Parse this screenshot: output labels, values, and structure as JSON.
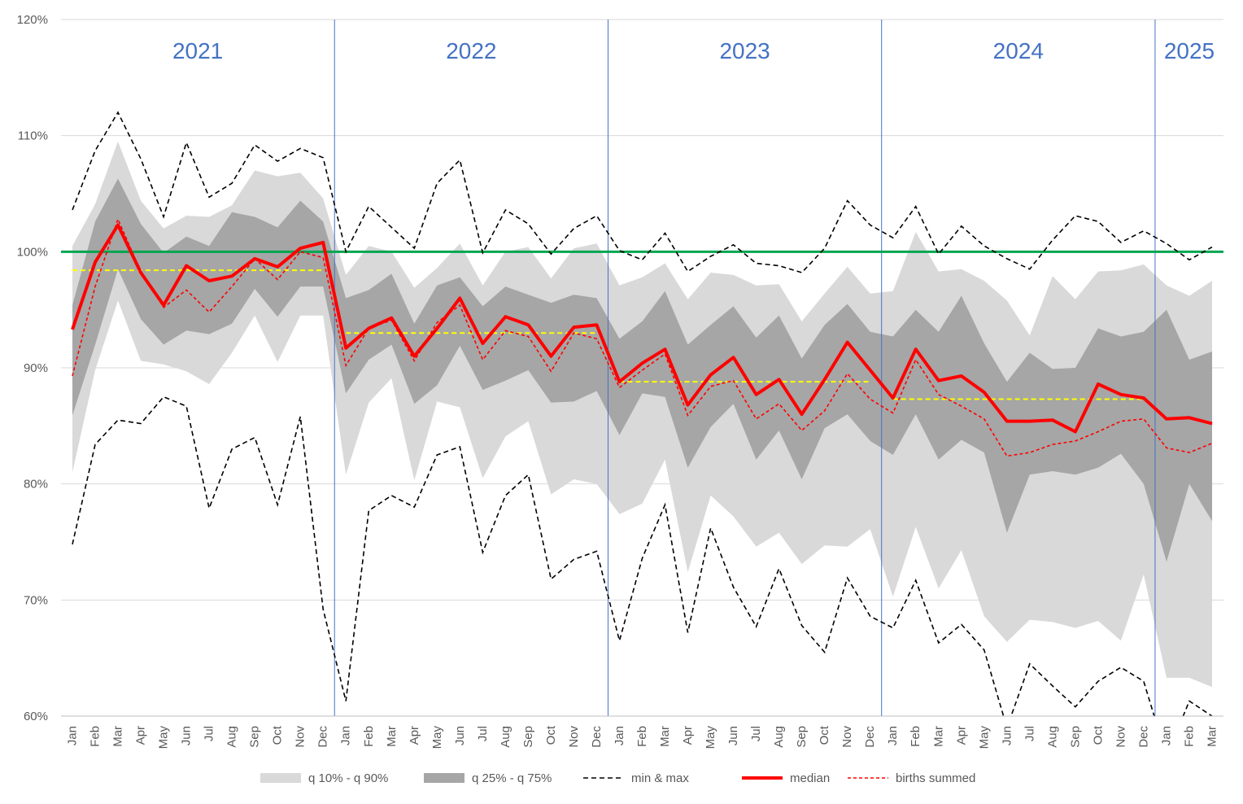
{
  "chart_data": {
    "type": "area",
    "title": "",
    "xlabel": "",
    "ylabel": "",
    "ylim": [
      60,
      120
    ],
    "yticks": [
      "60%",
      "70%",
      "80%",
      "90%",
      "100%",
      "110%",
      "120%"
    ],
    "ytick_values": [
      60,
      70,
      80,
      90,
      100,
      110,
      120
    ],
    "grid": "horizontal",
    "legend_position": "bottom",
    "years": [
      {
        "label": "2021",
        "start": 0,
        "end": 12
      },
      {
        "label": "2022",
        "start": 12,
        "end": 24
      },
      {
        "label": "2023",
        "start": 24,
        "end": 36
      },
      {
        "label": "2024",
        "start": 36,
        "end": 48
      },
      {
        "label": "2025",
        "start": 48,
        "end": 51
      }
    ],
    "categories": [
      "Jan",
      "Feb",
      "Mar",
      "Apr",
      "May",
      "Jun",
      "Jul",
      "Aug",
      "Sep",
      "Oct",
      "Nov",
      "Dec",
      "Jan",
      "Feb",
      "Mar",
      "Apr",
      "May",
      "Jun",
      "Jul",
      "Aug",
      "Sep",
      "Oct",
      "Nov",
      "Dec",
      "Jan",
      "Feb",
      "Mar",
      "Apr",
      "May",
      "Jun",
      "Jul",
      "Aug",
      "Sep",
      "Oct",
      "Nov",
      "Dec",
      "Jan",
      "Feb",
      "Mar",
      "Apr",
      "May",
      "Jun",
      "Jul",
      "Aug",
      "Sep",
      "Oct",
      "Nov",
      "Dec",
      "Jan",
      "Feb",
      "Mar"
    ],
    "series": [
      {
        "name": "q 10% - q 90%",
        "kind": "band",
        "color": "#d9d9d9",
        "lower": [
          81.0,
          89.8,
          95.8,
          90.6,
          90.3,
          89.7,
          88.6,
          91.3,
          94.5,
          90.5,
          94.5,
          94.5,
          80.8,
          87.0,
          89.1,
          80.3,
          87.1,
          86.6,
          80.5,
          84.1,
          85.4,
          79.1,
          80.4,
          80.0,
          77.4,
          78.3,
          82.1,
          72.4,
          79.0,
          77.2,
          74.6,
          75.8,
          73.1,
          74.7,
          74.6,
          76.1,
          70.3,
          76.3,
          71.0,
          74.3,
          68.6,
          66.4,
          68.3,
          68.1,
          67.6,
          68.2,
          66.5,
          72.2,
          63.3,
          63.3,
          62.5
        ],
        "upper": [
          100.5,
          104.1,
          109.5,
          104.4,
          102.0,
          103.1,
          103.0,
          104.0,
          107.0,
          106.5,
          106.8,
          104.6,
          98.0,
          100.5,
          100.0,
          96.9,
          98.6,
          100.7,
          97.1,
          100.0,
          100.4,
          97.7,
          100.3,
          100.7,
          97.1,
          97.8,
          99.0,
          95.9,
          98.2,
          98.0,
          97.1,
          97.2,
          94.0,
          96.4,
          98.7,
          96.4,
          96.6,
          101.7,
          98.3,
          98.5,
          97.5,
          95.8,
          92.8,
          97.9,
          95.9,
          98.3,
          98.4,
          98.9,
          97.1,
          96.2,
          97.5
        ]
      },
      {
        "name": "q 25% - q 75%",
        "kind": "band",
        "color": "#a6a6a6",
        "lower": [
          85.9,
          92.0,
          98.5,
          94.2,
          92.0,
          93.2,
          92.9,
          93.8,
          96.8,
          94.4,
          97.0,
          97.0,
          87.8,
          90.7,
          92.0,
          86.9,
          88.5,
          91.9,
          88.1,
          88.9,
          89.8,
          87.0,
          87.1,
          88.0,
          84.2,
          87.8,
          87.5,
          81.4,
          84.9,
          86.9,
          82.1,
          84.6,
          80.4,
          84.8,
          86.0,
          83.7,
          82.5,
          86.0,
          82.1,
          83.8,
          82.7,
          75.8,
          80.8,
          81.1,
          80.8,
          81.4,
          82.6,
          80.0,
          73.3,
          80.0,
          76.8
        ],
        "upper": [
          95.4,
          102.6,
          106.3,
          102.4,
          99.9,
          101.3,
          100.5,
          103.4,
          103.0,
          102.1,
          104.4,
          102.6,
          96.0,
          96.7,
          98.1,
          93.8,
          97.1,
          97.8,
          95.3,
          97.0,
          96.3,
          95.6,
          96.3,
          96.0,
          92.5,
          94.0,
          96.6,
          92.0,
          93.7,
          95.3,
          92.6,
          94.5,
          90.8,
          93.7,
          95.5,
          93.1,
          92.7,
          95.0,
          93.1,
          96.2,
          92.1,
          88.8,
          91.3,
          89.9,
          90.0,
          93.4,
          92.7,
          93.1,
          95.0,
          90.7,
          91.4
        ]
      },
      {
        "name": "min & max",
        "kind": "minmax",
        "color": "#000000",
        "min": [
          74.8,
          83.4,
          85.5,
          85.2,
          87.5,
          86.7,
          77.9,
          83.0,
          84.0,
          78.2,
          85.8,
          69.2,
          61.3,
          77.7,
          79.0,
          78.0,
          82.5,
          83.2,
          74.1,
          79.0,
          80.8,
          71.8,
          73.5,
          74.2,
          66.5,
          73.6,
          78.2,
          67.2,
          76.2,
          71.1,
          67.7,
          72.7,
          67.8,
          65.5,
          71.9,
          68.6,
          67.6,
          71.7,
          66.3,
          67.9,
          65.7,
          59.0,
          64.5,
          62.6,
          60.8,
          63.0,
          64.2,
          63.0,
          56.5,
          61.3,
          60.0
        ],
        "max": [
          103.6,
          108.7,
          112.0,
          108.0,
          103.0,
          109.4,
          104.7,
          105.9,
          109.2,
          107.8,
          108.9,
          108.1,
          100.0,
          103.9,
          102.1,
          100.3,
          105.9,
          107.9,
          99.9,
          103.6,
          102.4,
          99.8,
          102.0,
          103.1,
          100.1,
          99.3,
          101.6,
          98.3,
          99.6,
          100.6,
          99.0,
          98.8,
          98.2,
          100.3,
          104.4,
          102.3,
          101.2,
          103.9,
          99.8,
          102.2,
          100.5,
          99.4,
          98.5,
          101.0,
          103.1,
          102.6,
          100.8,
          101.8,
          100.7,
          99.3,
          100.4
        ]
      },
      {
        "name": "median",
        "kind": "line",
        "color": "#ff0000",
        "values": [
          93.3,
          99.1,
          102.3,
          98.2,
          95.4,
          98.8,
          97.5,
          97.9,
          99.4,
          98.7,
          100.3,
          100.8,
          91.7,
          93.4,
          94.3,
          91.0,
          93.4,
          96.0,
          92.1,
          94.4,
          93.7,
          91.0,
          93.5,
          93.7,
          88.8,
          90.4,
          91.6,
          86.8,
          89.4,
          90.9,
          87.7,
          89.0,
          86.0,
          89.0,
          92.2,
          89.8,
          87.4,
          91.6,
          88.9,
          89.3,
          87.9,
          85.4,
          85.4,
          85.5,
          84.5,
          88.6,
          87.7,
          87.4,
          85.6,
          85.7,
          85.2
        ]
      },
      {
        "name": "births summed",
        "kind": "dashed",
        "color": "#ff0000",
        "values": [
          89.3,
          97.0,
          102.8,
          98.3,
          95.2,
          96.7,
          94.8,
          97.0,
          99.4,
          97.6,
          100.0,
          99.5,
          90.2,
          93.4,
          94.1,
          90.6,
          93.9,
          95.4,
          90.7,
          93.2,
          92.7,
          89.7,
          93.0,
          92.5,
          88.3,
          89.8,
          91.2,
          85.9,
          88.4,
          88.9,
          85.6,
          86.9,
          84.6,
          86.3,
          89.5,
          87.3,
          86.1,
          90.7,
          87.7,
          86.7,
          85.6,
          82.4,
          82.7,
          83.4,
          83.7,
          84.5,
          85.4,
          85.6,
          83.1,
          82.7,
          83.5
        ]
      },
      {
        "name": "yearly average",
        "kind": "segments",
        "color": "#ffff00",
        "segments": [
          {
            "start": 0,
            "end": 11,
            "value": 98.4
          },
          {
            "start": 12,
            "end": 23,
            "value": 93.0
          },
          {
            "start": 24,
            "end": 35,
            "value": 88.8
          },
          {
            "start": 36,
            "end": 47,
            "value": 87.3
          }
        ]
      },
      {
        "name": "100% reference",
        "kind": "hline",
        "color": "#00a550",
        "value": 100
      }
    ]
  },
  "legend": [
    {
      "label": "q 10% - q 90%",
      "kind": "box",
      "color": "#d9d9d9"
    },
    {
      "label": "q 25% - q 75%",
      "kind": "box",
      "color": "#a6a6a6"
    },
    {
      "label": "min & max",
      "kind": "dashed-black",
      "color": "#000000"
    },
    {
      "label": "median",
      "kind": "thick-red",
      "color": "#ff0000"
    },
    {
      "label": "births summed",
      "kind": "dashed-red",
      "color": "#ff0000"
    }
  ]
}
